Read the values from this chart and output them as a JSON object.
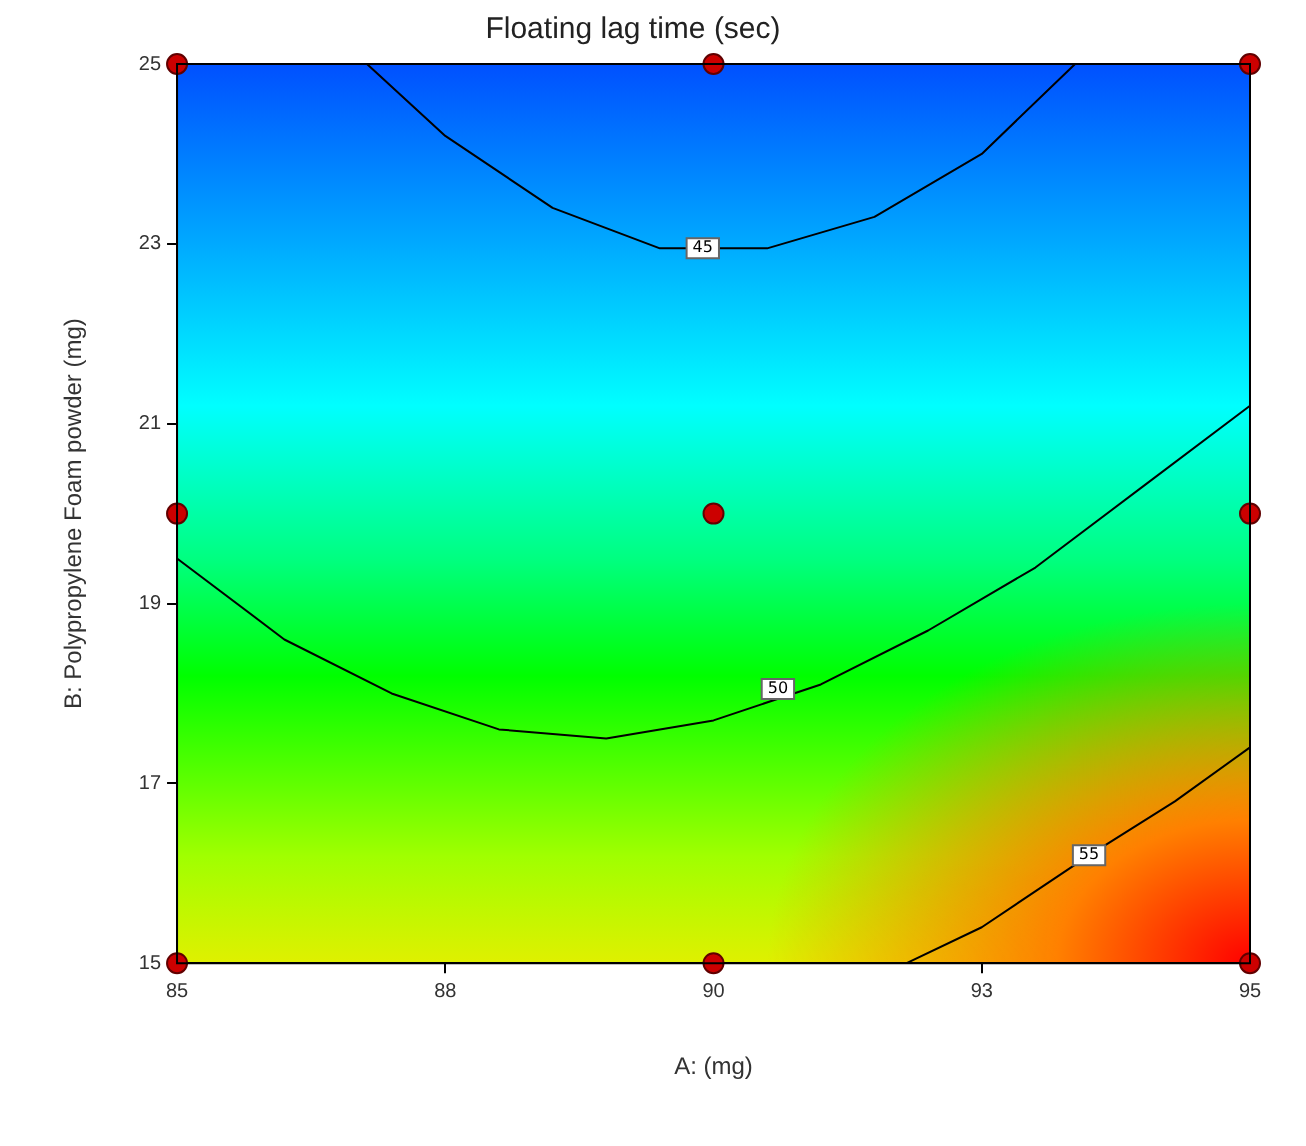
{
  "chart_data": {
    "type": "scatter",
    "title": "Floating lag time (sec)",
    "xlabel": "A: (mg)",
    "ylabel": "B: Polypropylene Foam powder (mg)",
    "xlim": [
      85,
      95
    ],
    "xticks": [
      85,
      {
        "value": 87.5,
        "label": "88"
      },
      90,
      {
        "value": 92.5,
        "label": "93"
      },
      95
    ],
    "ylim": [
      15,
      25
    ],
    "yticks": [
      15,
      17,
      19,
      21,
      23,
      25
    ],
    "grid": false,
    "legend": false,
    "series": [
      {
        "type": "line",
        "color": "#000000",
        "marker": "none",
        "x": [
          86.77,
          87.5,
          88.5,
          89.5,
          90.5,
          91.5,
          92.5,
          93.37
        ],
        "values": [
          25,
          24.2,
          23.4,
          22.95,
          22.95,
          23.3,
          24,
          25
        ]
      },
      {
        "type": "line",
        "color": "#000000",
        "marker": "none",
        "x": [
          85,
          86,
          87,
          88,
          89,
          90,
          91,
          92,
          93,
          94,
          95
        ],
        "values": [
          19.5,
          18.6,
          18,
          17.6,
          17.5,
          17.7,
          18.1,
          18.7,
          19.4,
          20.3,
          21.2
        ]
      },
      {
        "type": "line",
        "color": "#000000",
        "marker": "none",
        "x": [
          91.8,
          92.5,
          93.5,
          94.3,
          95
        ],
        "values": [
          15,
          15.4,
          16.2,
          16.8,
          17.4
        ]
      },
      {
        "type": "scatter",
        "color": "#cc0000",
        "marker": "circle",
        "x": [
          85,
          90,
          95,
          85,
          90,
          95,
          85,
          90,
          95
        ],
        "values": [
          15,
          15,
          15,
          20,
          20,
          20,
          25,
          25,
          25
        ]
      }
    ],
    "annotations": [
      {
        "text": "45",
        "x": 89.9,
        "y": 22.95
      },
      {
        "text": "50",
        "x": 90.6,
        "y": 18.05
      },
      {
        "text": "55",
        "x": 93.5,
        "y": 16.2
      }
    ]
  }
}
